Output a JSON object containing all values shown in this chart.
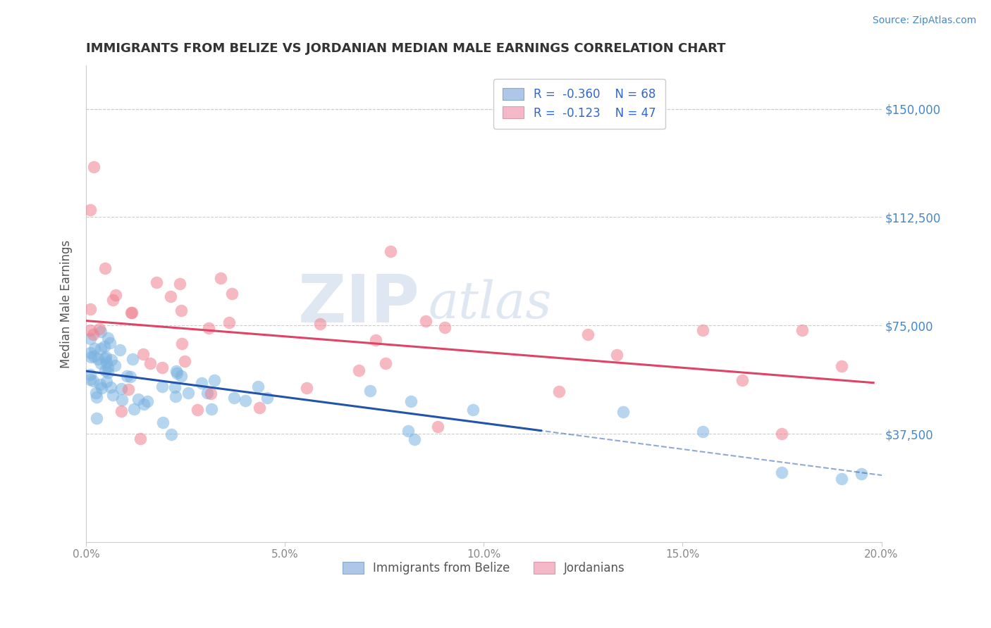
{
  "title": "IMMIGRANTS FROM BELIZE VS JORDANIAN MEDIAN MALE EARNINGS CORRELATION CHART",
  "source": "Source: ZipAtlas.com",
  "ylabel": "Median Male Earnings",
  "xlim": [
    0.0,
    0.2
  ],
  "ylim": [
    0,
    165000
  ],
  "yticks": [
    0,
    37500,
    75000,
    112500,
    150000
  ],
  "ytick_labels": [
    "",
    "$37,500",
    "$75,000",
    "$112,500",
    "$150,000"
  ],
  "xticks": [
    0.0,
    0.05,
    0.1,
    0.15,
    0.2
  ],
  "xtick_labels": [
    "0.0%",
    "5.0%",
    "10.0%",
    "15.0%",
    "20.0%"
  ],
  "series1_label": "Immigrants from Belize",
  "series2_label": "Jordanians",
  "blue_color": "#7ab3e0",
  "pink_color": "#f08090",
  "blue_line_color": "#2255aa",
  "pink_line_color": "#dd4466",
  "grid_color": "#cccccc",
  "bg_color": "#ffffff",
  "title_color": "#333333",
  "axis_label_color": "#555555",
  "right_tick_color": "#4488cc",
  "bottom_tick_color": "#888888",
  "legend_box_color": "#f0f0f0",
  "legend_border_color": "#cccccc",
  "legend_text_color": "#333333",
  "legend_value_color": "#3366cc",
  "watermark_color": "#c8d8ea"
}
